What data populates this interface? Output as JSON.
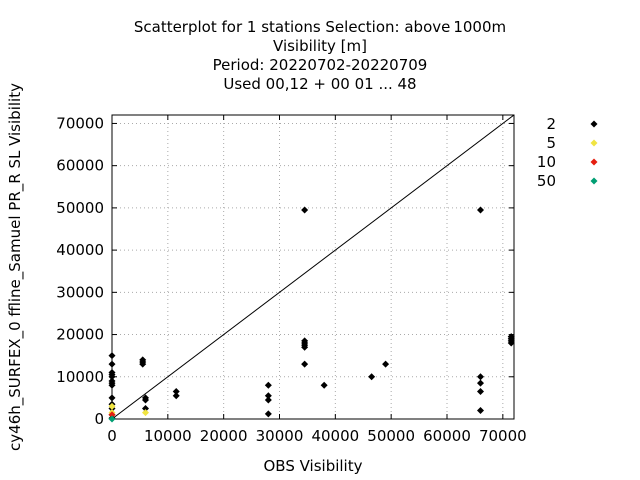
{
  "chart_data": {
    "type": "scatter",
    "title_lines": [
      "Scatterplot for    1 stations Selection: above 1000m",
      "Visibility [m]",
      "Period: 20220702-20220709",
      "Used  00,12  + 00 01 ... 48"
    ],
    "xlabel": "OBS Visibility",
    "ylabel": "cy46h_SURFEX_0 ffline_Samuel PR_R SL Visibility",
    "xlim": [
      0,
      72000
    ],
    "ylim": [
      0,
      72000
    ],
    "x_ticks": [
      0,
      10000,
      20000,
      30000,
      40000,
      50000,
      60000,
      70000
    ],
    "y_ticks": [
      0,
      10000,
      20000,
      30000,
      40000,
      50000,
      60000,
      70000
    ],
    "grid": true,
    "diagonal_line": true,
    "legend_position": "right",
    "series": [
      {
        "name": "2",
        "color": "#000000",
        "points": [
          [
            0,
            15000
          ],
          [
            0,
            13000
          ],
          [
            0,
            11000
          ],
          [
            0,
            10500
          ],
          [
            0,
            10000
          ],
          [
            0,
            9000
          ],
          [
            0,
            8500
          ],
          [
            0,
            8000
          ],
          [
            0,
            5000
          ],
          [
            0,
            3500
          ],
          [
            0,
            2500
          ],
          [
            0,
            1000
          ],
          [
            0,
            200
          ],
          [
            5500,
            14000
          ],
          [
            5500,
            13500
          ],
          [
            5500,
            13000
          ],
          [
            6000,
            5000
          ],
          [
            6000,
            4500
          ],
          [
            6000,
            2500
          ],
          [
            11500,
            6500
          ],
          [
            11500,
            5500
          ],
          [
            28000,
            8000
          ],
          [
            28000,
            5500
          ],
          [
            28000,
            4500
          ],
          [
            28000,
            1200
          ],
          [
            34500,
            49500
          ],
          [
            34500,
            18500
          ],
          [
            34500,
            18000
          ],
          [
            34500,
            17500
          ],
          [
            34500,
            17000
          ],
          [
            34500,
            13000
          ],
          [
            38000,
            8000
          ],
          [
            46500,
            10000
          ],
          [
            49000,
            13000
          ],
          [
            66000,
            49500
          ],
          [
            66000,
            10000
          ],
          [
            66000,
            8500
          ],
          [
            66000,
            6500
          ],
          [
            66000,
            2000
          ],
          [
            71500,
            19500
          ],
          [
            71500,
            19000
          ],
          [
            71500,
            18500
          ],
          [
            71500,
            18000
          ]
        ]
      },
      {
        "name": "5",
        "color": "#f0e442",
        "points": [
          [
            0,
            3000
          ],
          [
            0,
            1500
          ],
          [
            6000,
            1500
          ]
        ]
      },
      {
        "name": "10",
        "color": "#e51e10",
        "points": [
          [
            0,
            1000
          ]
        ]
      },
      {
        "name": "50",
        "color": "#009e73",
        "points": [
          [
            0,
            0
          ]
        ]
      }
    ]
  }
}
